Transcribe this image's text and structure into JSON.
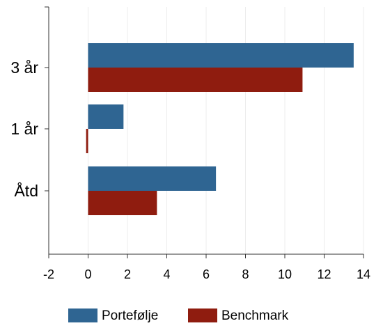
{
  "chart_data": {
    "type": "bar",
    "orientation": "horizontal",
    "categories": [
      "3 år",
      "1 år",
      "Åtd"
    ],
    "series": [
      {
        "name": "Portefølje",
        "color": "#2f6592",
        "values": [
          13.5,
          1.8,
          6.5
        ]
      },
      {
        "name": "Benchmark",
        "color": "#8f1c0f",
        "values": [
          10.9,
          -0.1,
          3.5
        ]
      }
    ],
    "xlim": [
      -2,
      14
    ],
    "xticks": [
      "-2",
      "0",
      "2",
      "4",
      "6",
      "8",
      "10",
      "12",
      "14"
    ],
    "grid": true,
    "legend_position": "bottom",
    "title": "",
    "xlabel": "",
    "ylabel": ""
  }
}
